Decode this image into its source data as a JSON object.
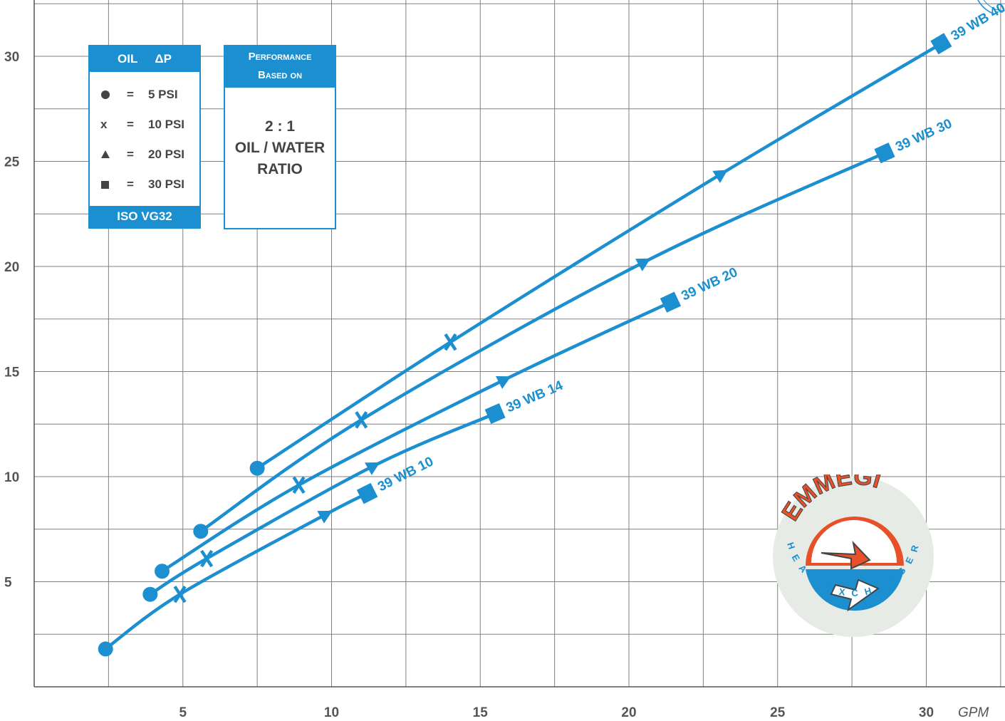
{
  "chart_data": {
    "type": "line",
    "xlabel": "GPM",
    "ylabel": "",
    "xlim": [
      0,
      32.5
    ],
    "ylim": [
      0,
      32.5
    ],
    "x_ticks": [
      5,
      10,
      15,
      20,
      25,
      30
    ],
    "y_ticks": [
      5,
      10,
      15,
      20,
      25,
      30
    ],
    "grid": true,
    "color": "#1b8fcf",
    "marker_legend": {
      "header": [
        "OIL",
        "ΔP"
      ],
      "footer": "ISO VG32",
      "entries": [
        {
          "marker": "circle",
          "symbol": "●",
          "eq": "=",
          "label": "5 PSI"
        },
        {
          "marker": "x",
          "symbol": "x",
          "eq": "=",
          "label": "10 PSI"
        },
        {
          "marker": "triangle",
          "symbol": "▲",
          "eq": "=",
          "label": "20 PSI"
        },
        {
          "marker": "square",
          "symbol": "■",
          "eq": "=",
          "label": "30 PSI"
        }
      ]
    },
    "performance_note": {
      "header_1": "Performance",
      "header_2": "Based on",
      "line_1": "2 : 1",
      "line_2": "OIL / WATER",
      "line_3": "RATIO"
    },
    "series": [
      {
        "name": "39 WB 10",
        "points": [
          {
            "x": 2.4,
            "y": 1.8,
            "marker": "circle"
          },
          {
            "x": 4.9,
            "y": 4.4,
            "marker": "x"
          },
          {
            "x": 9.8,
            "y": 8.2,
            "marker": "triangle"
          },
          {
            "x": 11.2,
            "y": 9.2,
            "marker": "square"
          }
        ]
      },
      {
        "name": "39 WB 14",
        "points": [
          {
            "x": 3.9,
            "y": 4.4,
            "marker": "circle"
          },
          {
            "x": 5.8,
            "y": 6.1,
            "marker": "x"
          },
          {
            "x": 11.4,
            "y": 10.5,
            "marker": "triangle"
          },
          {
            "x": 15.5,
            "y": 13.0,
            "marker": "square"
          }
        ]
      },
      {
        "name": "39 WB 20",
        "points": [
          {
            "x": 4.3,
            "y": 5.5,
            "marker": "circle"
          },
          {
            "x": 8.9,
            "y": 9.6,
            "marker": "x"
          },
          {
            "x": 15.8,
            "y": 14.6,
            "marker": "triangle"
          },
          {
            "x": 21.4,
            "y": 18.3,
            "marker": "square"
          }
        ]
      },
      {
        "name": "39 WB 30",
        "points": [
          {
            "x": 5.6,
            "y": 7.4,
            "marker": "circle"
          },
          {
            "x": 11.0,
            "y": 12.7,
            "marker": "x"
          },
          {
            "x": 20.5,
            "y": 20.2,
            "marker": "triangle"
          },
          {
            "x": 28.6,
            "y": 25.4,
            "marker": "square"
          }
        ]
      },
      {
        "name": "39 WB 40",
        "points": [
          {
            "x": 7.5,
            "y": 10.4,
            "marker": "circle"
          },
          {
            "x": 14.0,
            "y": 16.4,
            "marker": "x"
          },
          {
            "x": 23.1,
            "y": 24.4,
            "marker": "triangle"
          },
          {
            "x": 30.5,
            "y": 30.6,
            "marker": "square"
          }
        ]
      }
    ]
  },
  "logo": {
    "brand": "EMMEGI",
    "tagline": "HEAT-EXCHANGERS"
  }
}
